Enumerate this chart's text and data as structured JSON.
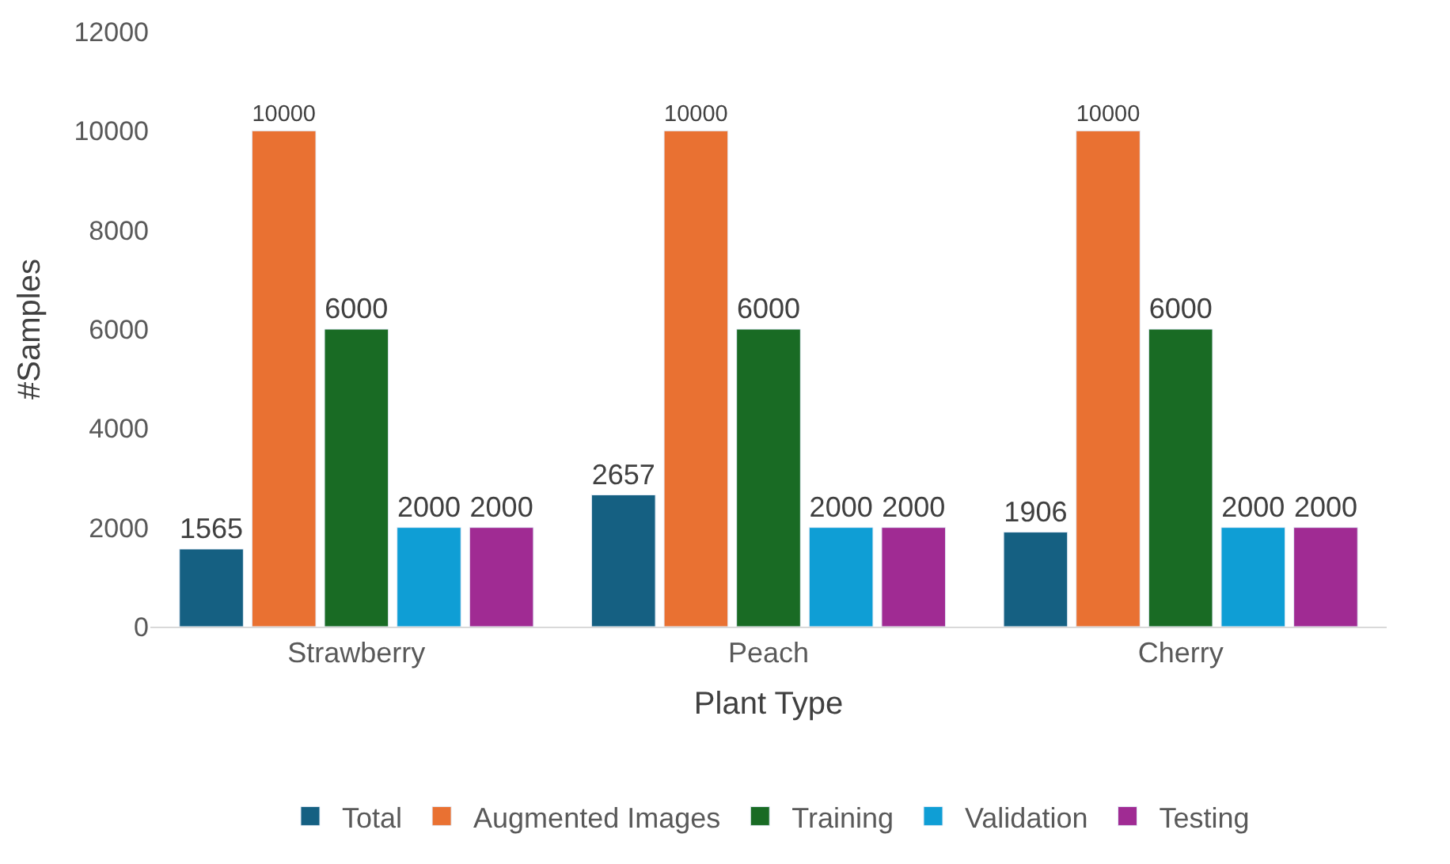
{
  "chart_data": {
    "type": "bar",
    "xlabel": "Plant Type",
    "ylabel": "#Samples",
    "categories": [
      "Strawberry",
      "Peach",
      "Cherry"
    ],
    "series": [
      {
        "name": "Total",
        "color": "#156082",
        "values": [
          1565,
          2657,
          1906
        ]
      },
      {
        "name": "Augmented Images",
        "color": "#e97132",
        "values": [
          10000,
          10000,
          10000
        ]
      },
      {
        "name": "Training",
        "color": "#196b24",
        "values": [
          6000,
          6000,
          6000
        ]
      },
      {
        "name": "Validation",
        "color": "#0f9ed5",
        "values": [
          2000,
          2000,
          2000
        ]
      },
      {
        "name": "Testing",
        "color": "#a02b93",
        "values": [
          2000,
          2000,
          2000
        ]
      }
    ],
    "ylim": [
      0,
      12000
    ],
    "yticks": [
      0,
      2000,
      4000,
      6000,
      8000,
      10000,
      12000
    ],
    "grid": false,
    "legend": "bottom",
    "data_labels": true
  }
}
